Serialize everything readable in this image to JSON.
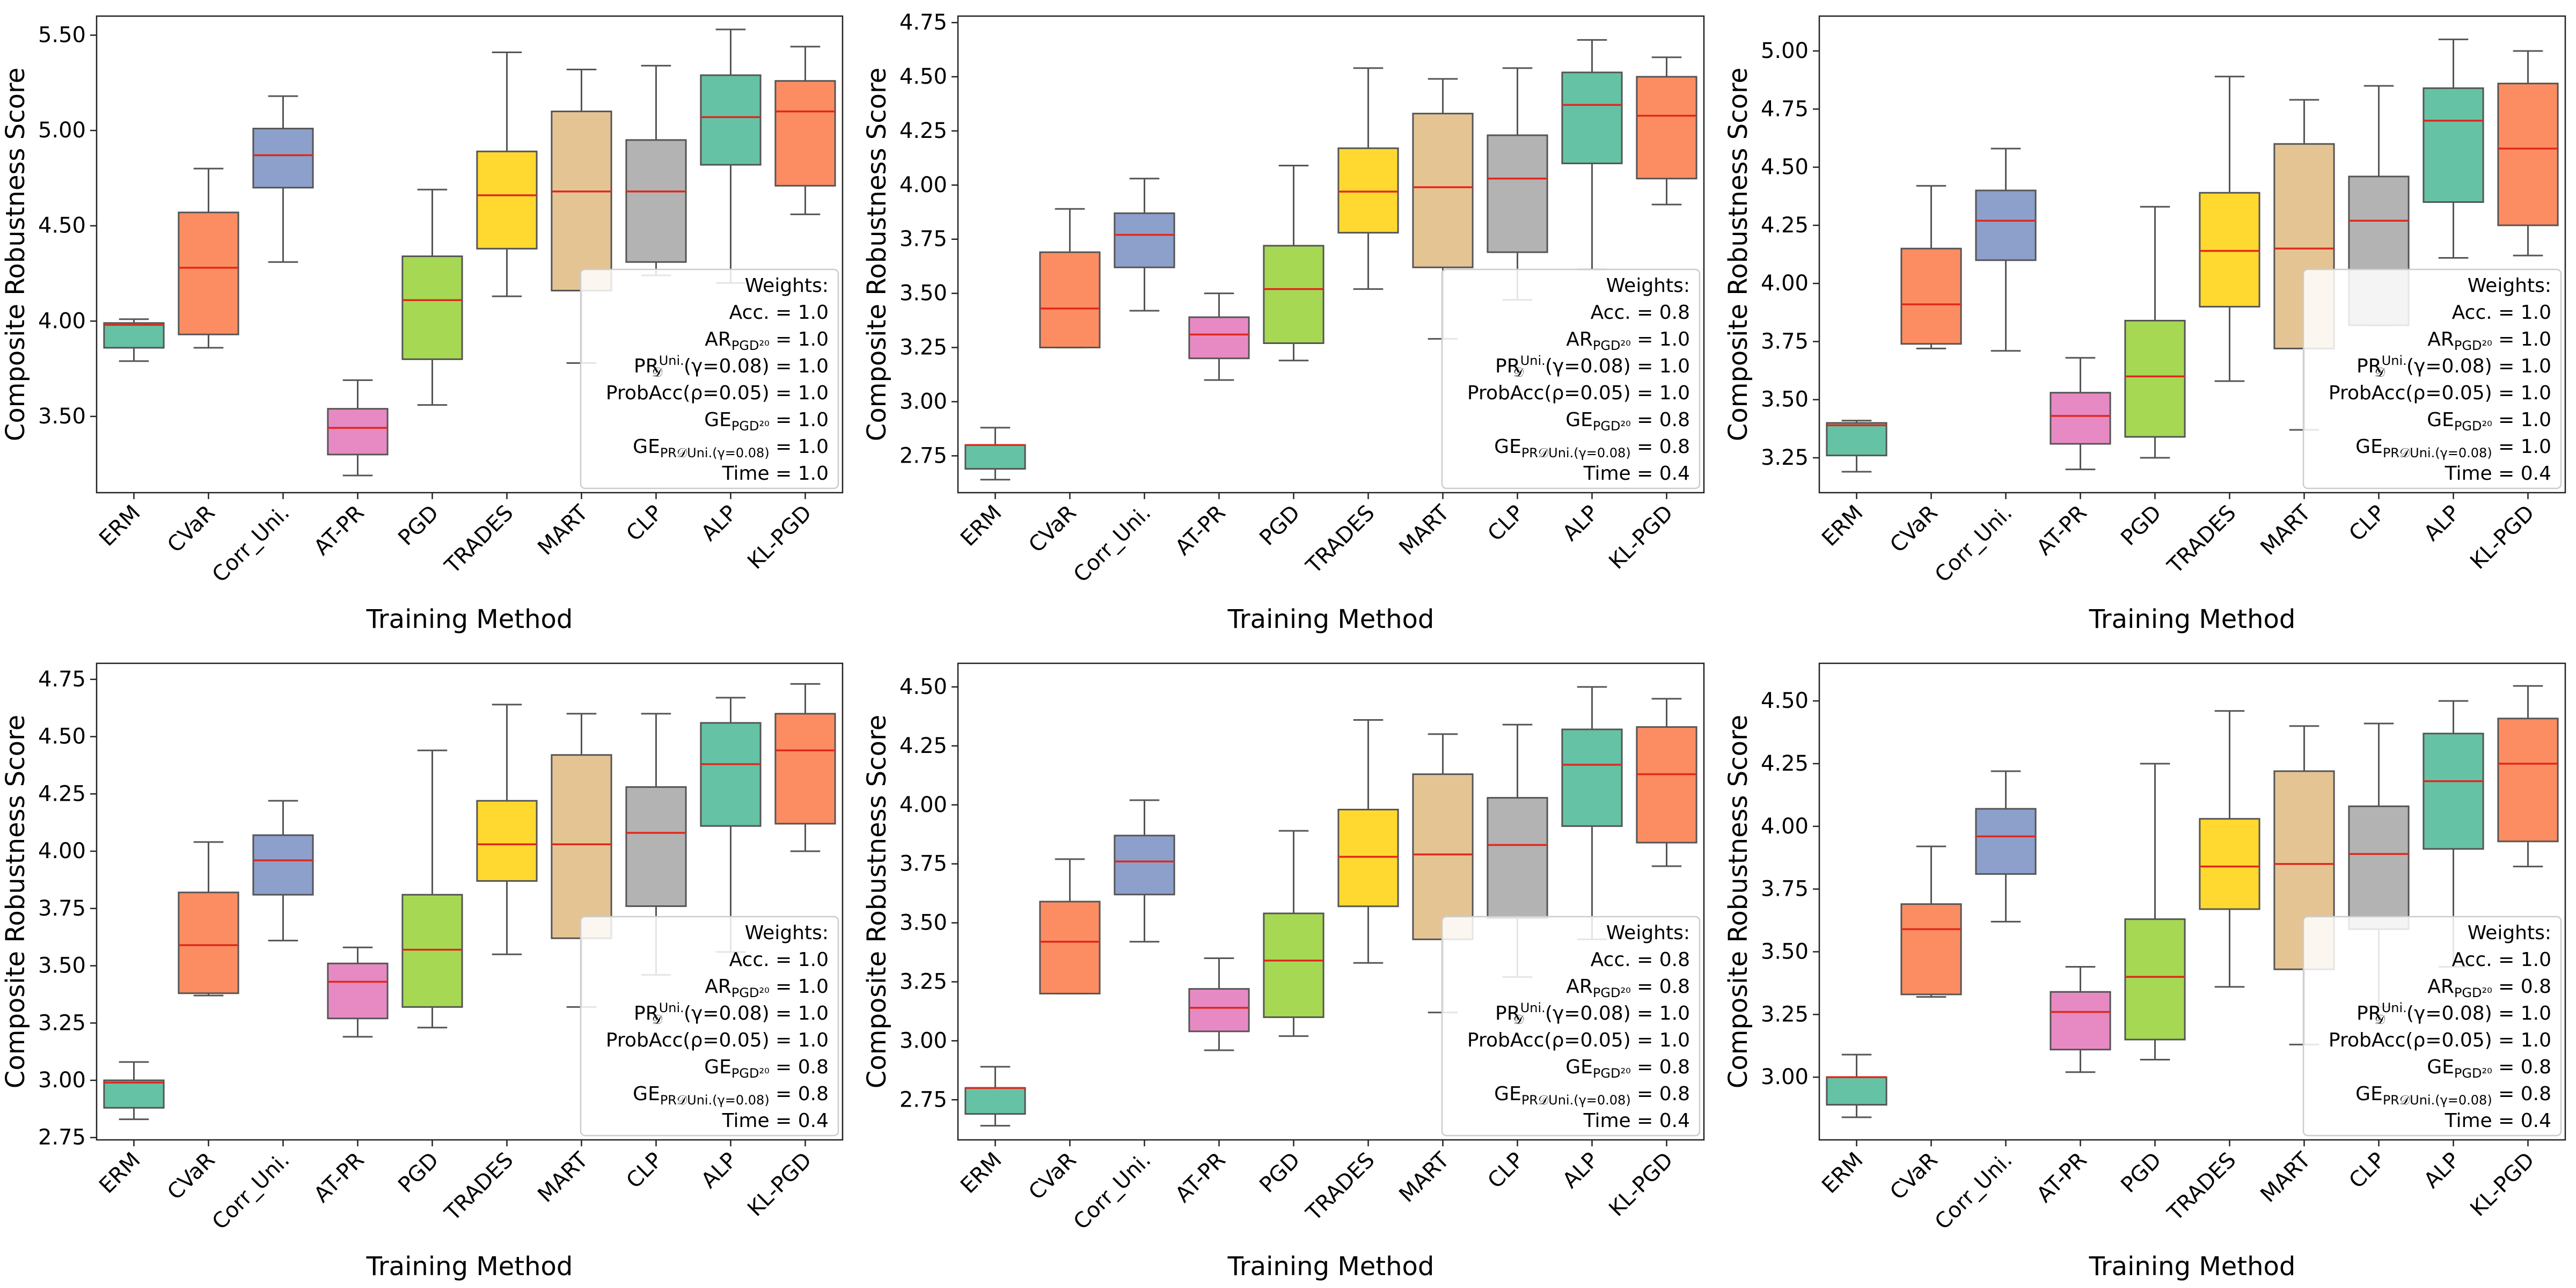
{
  "figure": {
    "xlabel": "Training Method",
    "ylabel": "Composite Robustness Score"
  },
  "chart_data": [
    {
      "type": "box",
      "categories": [
        "ERM",
        "CVaR",
        "Corr_Uni.",
        "AT-PR",
        "PGD",
        "TRADES",
        "MART",
        "CLP",
        "ALP",
        "KL-PGD"
      ],
      "colors": [
        "#66c2a5",
        "#fc8d62",
        "#8da0cb",
        "#e78ac3",
        "#a6d854",
        "#ffd92f",
        "#e5c494",
        "#b3b3b3",
        "#66c2a5",
        "#fc8d62"
      ],
      "xlabel": "Training Method",
      "ylabel": "Composite Robustness Score",
      "ylim": [
        3.1,
        5.6
      ],
      "yticks": [
        3.5,
        4.0,
        4.5,
        5.0,
        5.5
      ],
      "boxes": [
        {
          "low": 3.79,
          "q1": 3.86,
          "median": 3.98,
          "q3": 3.99,
          "high": 4.01
        },
        {
          "low": 3.86,
          "q1": 3.93,
          "median": 4.28,
          "q3": 4.57,
          "high": 4.8
        },
        {
          "low": 4.31,
          "q1": 4.7,
          "median": 4.87,
          "q3": 5.01,
          "high": 5.18
        },
        {
          "low": 3.19,
          "q1": 3.3,
          "median": 3.44,
          "q3": 3.54,
          "high": 3.69
        },
        {
          "low": 3.56,
          "q1": 3.8,
          "median": 4.11,
          "q3": 4.34,
          "high": 4.69
        },
        {
          "low": 4.13,
          "q1": 4.38,
          "median": 4.66,
          "q3": 4.89,
          "high": 5.41
        },
        {
          "low": 3.78,
          "q1": 4.16,
          "median": 4.68,
          "q3": 5.1,
          "high": 5.32
        },
        {
          "low": 4.24,
          "q1": 4.31,
          "median": 4.68,
          "q3": 4.95,
          "high": 5.34
        },
        {
          "low": 4.2,
          "q1": 4.82,
          "median": 5.07,
          "q3": 5.29,
          "high": 5.53
        },
        {
          "low": 4.56,
          "q1": 4.71,
          "median": 5.1,
          "q3": 5.26,
          "high": 5.44
        }
      ],
      "legend": {
        "placement": "bottom-right",
        "title": "Weights:",
        "lines": [
          [
            "Acc. = 1.0"
          ],
          [
            "AR",
            "PGD²⁰",
            " = 1.0"
          ],
          [
            "PR",
            "𝒟",
            "Uni.",
            "(γ=0.08) = 1.0"
          ],
          [
            "ProbAcc(ρ=0.05) = 1.0"
          ],
          [
            "GE",
            "PGD²⁰",
            " = 1.0"
          ],
          [
            "GE",
            "PR𝒟Uni.(γ=0.08)",
            " = 1.0"
          ],
          [
            "Time = 1.0"
          ]
        ]
      }
    },
    {
      "type": "box",
      "categories": [
        "ERM",
        "CVaR",
        "Corr_Uni.",
        "AT-PR",
        "PGD",
        "TRADES",
        "MART",
        "CLP",
        "ALP",
        "KL-PGD"
      ],
      "colors": [
        "#66c2a5",
        "#fc8d62",
        "#8da0cb",
        "#e78ac3",
        "#a6d854",
        "#ffd92f",
        "#e5c494",
        "#b3b3b3",
        "#66c2a5",
        "#fc8d62"
      ],
      "xlabel": "Training Method",
      "ylabel": "Composite Robustness Score",
      "ylim": [
        2.58,
        4.78
      ],
      "yticks": [
        2.75,
        3.0,
        3.25,
        3.5,
        3.75,
        4.0,
        4.25,
        4.5,
        4.75
      ],
      "boxes": [
        {
          "low": 2.64,
          "q1": 2.69,
          "median": 2.8,
          "q3": 2.8,
          "high": 2.88
        },
        {
          "low": 3.25,
          "q1": 3.25,
          "median": 3.43,
          "q3": 3.69,
          "high": 3.89
        },
        {
          "low": 3.42,
          "q1": 3.62,
          "median": 3.77,
          "q3": 3.87,
          "high": 4.03
        },
        {
          "low": 3.1,
          "q1": 3.2,
          "median": 3.31,
          "q3": 3.39,
          "high": 3.5
        },
        {
          "low": 3.19,
          "q1": 3.27,
          "median": 3.52,
          "q3": 3.72,
          "high": 4.09
        },
        {
          "low": 3.52,
          "q1": 3.78,
          "median": 3.97,
          "q3": 4.17,
          "high": 4.54
        },
        {
          "low": 3.29,
          "q1": 3.62,
          "median": 3.99,
          "q3": 4.33,
          "high": 4.49
        },
        {
          "low": 3.47,
          "q1": 3.69,
          "median": 4.03,
          "q3": 4.23,
          "high": 4.54
        },
        {
          "low": 3.61,
          "q1": 4.1,
          "median": 4.37,
          "q3": 4.52,
          "high": 4.67
        },
        {
          "low": 3.91,
          "q1": 4.03,
          "median": 4.32,
          "q3": 4.5,
          "high": 4.59
        }
      ],
      "legend": {
        "placement": "bottom-right",
        "title": "Weights:",
        "lines": [
          [
            "Acc. = 0.8"
          ],
          [
            "AR",
            "PGD²⁰",
            " = 1.0"
          ],
          [
            "PR",
            "𝒟",
            "Uni.",
            "(γ=0.08) = 1.0"
          ],
          [
            "ProbAcc(ρ=0.05) = 1.0"
          ],
          [
            "GE",
            "PGD²⁰",
            " = 0.8"
          ],
          [
            "GE",
            "PR𝒟Uni.(γ=0.08)",
            " = 0.8"
          ],
          [
            "Time =  0.4"
          ]
        ]
      }
    },
    {
      "type": "box",
      "categories": [
        "ERM",
        "CVaR",
        "Corr_Uni.",
        "AT-PR",
        "PGD",
        "TRADES",
        "MART",
        "CLP",
        "ALP",
        "KL-PGD"
      ],
      "colors": [
        "#66c2a5",
        "#fc8d62",
        "#8da0cb",
        "#e78ac3",
        "#a6d854",
        "#ffd92f",
        "#e5c494",
        "#b3b3b3",
        "#66c2a5",
        "#fc8d62"
      ],
      "xlabel": "Training Method",
      "ylabel": "Composite Robustness Score",
      "ylim": [
        3.1,
        5.15
      ],
      "yticks": [
        3.25,
        3.5,
        3.75,
        4.0,
        4.25,
        4.5,
        4.75,
        5.0
      ],
      "boxes": [
        {
          "low": 3.19,
          "q1": 3.26,
          "median": 3.39,
          "q3": 3.4,
          "high": 3.41
        },
        {
          "low": 3.72,
          "q1": 3.74,
          "median": 3.91,
          "q3": 4.15,
          "high": 4.42
        },
        {
          "low": 3.71,
          "q1": 4.1,
          "median": 4.27,
          "q3": 4.4,
          "high": 4.58
        },
        {
          "low": 3.2,
          "q1": 3.31,
          "median": 3.43,
          "q3": 3.53,
          "high": 3.68
        },
        {
          "low": 3.25,
          "q1": 3.34,
          "median": 3.6,
          "q3": 3.84,
          "high": 4.33
        },
        {
          "low": 3.58,
          "q1": 3.9,
          "median": 4.14,
          "q3": 4.39,
          "high": 4.89
        },
        {
          "low": 3.37,
          "q1": 3.72,
          "median": 4.15,
          "q3": 4.6,
          "high": 4.79
        },
        {
          "low": 3.82,
          "q1": 3.82,
          "median": 4.27,
          "q3": 4.46,
          "high": 4.85
        },
        {
          "low": 4.11,
          "q1": 4.35,
          "median": 4.7,
          "q3": 4.84,
          "high": 5.05
        },
        {
          "low": 4.12,
          "q1": 4.25,
          "median": 4.58,
          "q3": 4.86,
          "high": 5.0
        }
      ],
      "legend": {
        "placement": "bottom-right",
        "title": "Weights:",
        "lines": [
          [
            "Acc. = 1.0"
          ],
          [
            "AR",
            "PGD²⁰",
            " = 1.0"
          ],
          [
            "PR",
            "𝒟",
            "Uni.",
            "(γ=0.08) = 1.0"
          ],
          [
            "ProbAcc(ρ=0.05) = 1.0"
          ],
          [
            "GE",
            "PGD²⁰",
            " = 1.0"
          ],
          [
            "GE",
            "PR𝒟Uni.(γ=0.08)",
            " = 1.0"
          ],
          [
            "Time =  0.4"
          ]
        ]
      }
    },
    {
      "type": "box",
      "categories": [
        "ERM",
        "CVaR",
        "Corr_Uni.",
        "AT-PR",
        "PGD",
        "TRADES",
        "MART",
        "CLP",
        "ALP",
        "KL-PGD"
      ],
      "colors": [
        "#66c2a5",
        "#fc8d62",
        "#8da0cb",
        "#e78ac3",
        "#a6d854",
        "#ffd92f",
        "#e5c494",
        "#b3b3b3",
        "#66c2a5",
        "#fc8d62"
      ],
      "xlabel": "Training Method",
      "ylabel": "Composite Robustness Score",
      "ylim": [
        2.74,
        4.82
      ],
      "yticks": [
        2.75,
        3.0,
        3.25,
        3.5,
        3.75,
        4.0,
        4.25,
        4.5,
        4.75
      ],
      "boxes": [
        {
          "low": 2.83,
          "q1": 2.88,
          "median": 2.99,
          "q3": 3.0,
          "high": 3.08
        },
        {
          "low": 3.37,
          "q1": 3.38,
          "median": 3.59,
          "q3": 3.82,
          "high": 4.04
        },
        {
          "low": 3.61,
          "q1": 3.81,
          "median": 3.96,
          "q3": 4.07,
          "high": 4.22
        },
        {
          "low": 3.19,
          "q1": 3.27,
          "median": 3.43,
          "q3": 3.51,
          "high": 3.58
        },
        {
          "low": 3.23,
          "q1": 3.32,
          "median": 3.57,
          "q3": 3.81,
          "high": 4.44
        },
        {
          "low": 3.55,
          "q1": 3.87,
          "median": 4.03,
          "q3": 4.22,
          "high": 4.64
        },
        {
          "low": 3.32,
          "q1": 3.62,
          "median": 4.03,
          "q3": 4.42,
          "high": 4.6
        },
        {
          "low": 3.46,
          "q1": 3.76,
          "median": 4.08,
          "q3": 4.28,
          "high": 4.6
        },
        {
          "low": 3.56,
          "q1": 4.11,
          "median": 4.38,
          "q3": 4.56,
          "high": 4.67
        },
        {
          "low": 4.0,
          "q1": 4.12,
          "median": 4.44,
          "q3": 4.6,
          "high": 4.73
        }
      ],
      "legend": {
        "placement": "bottom-right",
        "title": "Weights:",
        "lines": [
          [
            "Acc. = 1.0"
          ],
          [
            "AR",
            "PGD²⁰",
            " = 1.0"
          ],
          [
            "PR",
            "𝒟",
            "Uni.",
            "(γ=0.08) = 1.0"
          ],
          [
            "ProbAcc(ρ=0.05) = 1.0"
          ],
          [
            "GE",
            "PGD²⁰",
            " = 0.8"
          ],
          [
            "GE",
            "PR𝒟Uni.(γ=0.08)",
            " = 0.8"
          ],
          [
            "Time =  0.4"
          ]
        ]
      }
    },
    {
      "type": "box",
      "categories": [
        "ERM",
        "CVaR",
        "Corr_Uni.",
        "AT-PR",
        "PGD",
        "TRADES",
        "MART",
        "CLP",
        "ALP",
        "KL-PGD"
      ],
      "colors": [
        "#66c2a5",
        "#fc8d62",
        "#8da0cb",
        "#e78ac3",
        "#a6d854",
        "#ffd92f",
        "#e5c494",
        "#b3b3b3",
        "#66c2a5",
        "#fc8d62"
      ],
      "xlabel": "Training Method",
      "ylabel": "Composite Robustness Score",
      "ylim": [
        2.58,
        4.6
      ],
      "yticks": [
        2.75,
        3.0,
        3.25,
        3.5,
        3.75,
        4.0,
        4.25,
        4.5
      ],
      "boxes": [
        {
          "low": 2.64,
          "q1": 2.69,
          "median": 2.8,
          "q3": 2.8,
          "high": 2.89
        },
        {
          "low": 3.2,
          "q1": 3.2,
          "median": 3.42,
          "q3": 3.59,
          "high": 3.77
        },
        {
          "low": 3.42,
          "q1": 3.62,
          "median": 3.76,
          "q3": 3.87,
          "high": 4.02
        },
        {
          "low": 2.96,
          "q1": 3.04,
          "median": 3.14,
          "q3": 3.22,
          "high": 3.35
        },
        {
          "low": 3.02,
          "q1": 3.1,
          "median": 3.34,
          "q3": 3.54,
          "high": 3.89
        },
        {
          "low": 3.33,
          "q1": 3.57,
          "median": 3.78,
          "q3": 3.98,
          "high": 4.36
        },
        {
          "low": 3.12,
          "q1": 3.43,
          "median": 3.79,
          "q3": 4.13,
          "high": 4.3
        },
        {
          "low": 3.27,
          "q1": 3.52,
          "median": 3.83,
          "q3": 4.03,
          "high": 4.34
        },
        {
          "low": 3.43,
          "q1": 3.91,
          "median": 4.17,
          "q3": 4.32,
          "high": 4.5
        },
        {
          "low": 3.74,
          "q1": 3.84,
          "median": 4.13,
          "q3": 4.33,
          "high": 4.45
        }
      ],
      "legend": {
        "placement": "bottom-right",
        "title": "Weights:",
        "lines": [
          [
            "Acc. = 0.8"
          ],
          [
            "AR",
            "PGD²⁰",
            " = 0.8"
          ],
          [
            "PR",
            "𝒟",
            "Uni.",
            "(γ=0.08) = 1.0"
          ],
          [
            "ProbAcc(ρ=0.05) = 1.0"
          ],
          [
            "GE",
            "PGD²⁰",
            " = 0.8"
          ],
          [
            "GE",
            "PR𝒟Uni.(γ=0.08)",
            " = 0.8"
          ],
          [
            "Time =  0.4"
          ]
        ]
      }
    },
    {
      "type": "box",
      "categories": [
        "ERM",
        "CVaR",
        "Corr_Uni.",
        "AT-PR",
        "PGD",
        "TRADES",
        "MART",
        "CLP",
        "ALP",
        "KL-PGD"
      ],
      "colors": [
        "#66c2a5",
        "#fc8d62",
        "#8da0cb",
        "#e78ac3",
        "#a6d854",
        "#ffd92f",
        "#e5c494",
        "#b3b3b3",
        "#66c2a5",
        "#fc8d62"
      ],
      "xlabel": "Training Method",
      "ylabel": "Composite Robustness Score",
      "ylim": [
        2.75,
        4.65
      ],
      "yticks": [
        3.0,
        3.25,
        3.5,
        3.75,
        4.0,
        4.25,
        4.5
      ],
      "boxes": [
        {
          "low": 2.84,
          "q1": 2.89,
          "median": 3.0,
          "q3": 3.0,
          "high": 3.09
        },
        {
          "low": 3.32,
          "q1": 3.33,
          "median": 3.59,
          "q3": 3.69,
          "high": 3.92
        },
        {
          "low": 3.62,
          "q1": 3.81,
          "median": 3.96,
          "q3": 4.07,
          "high": 4.22
        },
        {
          "low": 3.02,
          "q1": 3.11,
          "median": 3.26,
          "q3": 3.34,
          "high": 3.44
        },
        {
          "low": 3.07,
          "q1": 3.15,
          "median": 3.4,
          "q3": 3.63,
          "high": 4.25
        },
        {
          "low": 3.36,
          "q1": 3.67,
          "median": 3.84,
          "q3": 4.03,
          "high": 4.46
        },
        {
          "low": 3.13,
          "q1": 3.43,
          "median": 3.85,
          "q3": 4.22,
          "high": 4.4
        },
        {
          "low": 3.28,
          "q1": 3.59,
          "median": 3.89,
          "q3": 4.08,
          "high": 4.41
        },
        {
          "low": 3.44,
          "q1": 3.91,
          "median": 4.18,
          "q3": 4.37,
          "high": 4.5
        },
        {
          "low": 3.84,
          "q1": 3.94,
          "median": 4.25,
          "q3": 4.43,
          "high": 4.56
        }
      ],
      "legend": {
        "placement": "bottom-right",
        "title": "Weights:",
        "lines": [
          [
            "Acc. = 1.0"
          ],
          [
            "AR",
            "PGD²⁰",
            " = 0.8"
          ],
          [
            "PR",
            "𝒟",
            "Uni.",
            "(γ=0.08) = 1.0"
          ],
          [
            "ProbAcc(ρ=0.05) = 1.0"
          ],
          [
            "GE",
            "PGD²⁰",
            " = 0.8"
          ],
          [
            "GE",
            "PR𝒟Uni.(γ=0.08)",
            " = 0.8"
          ],
          [
            "Time =  0.4"
          ]
        ]
      }
    }
  ]
}
